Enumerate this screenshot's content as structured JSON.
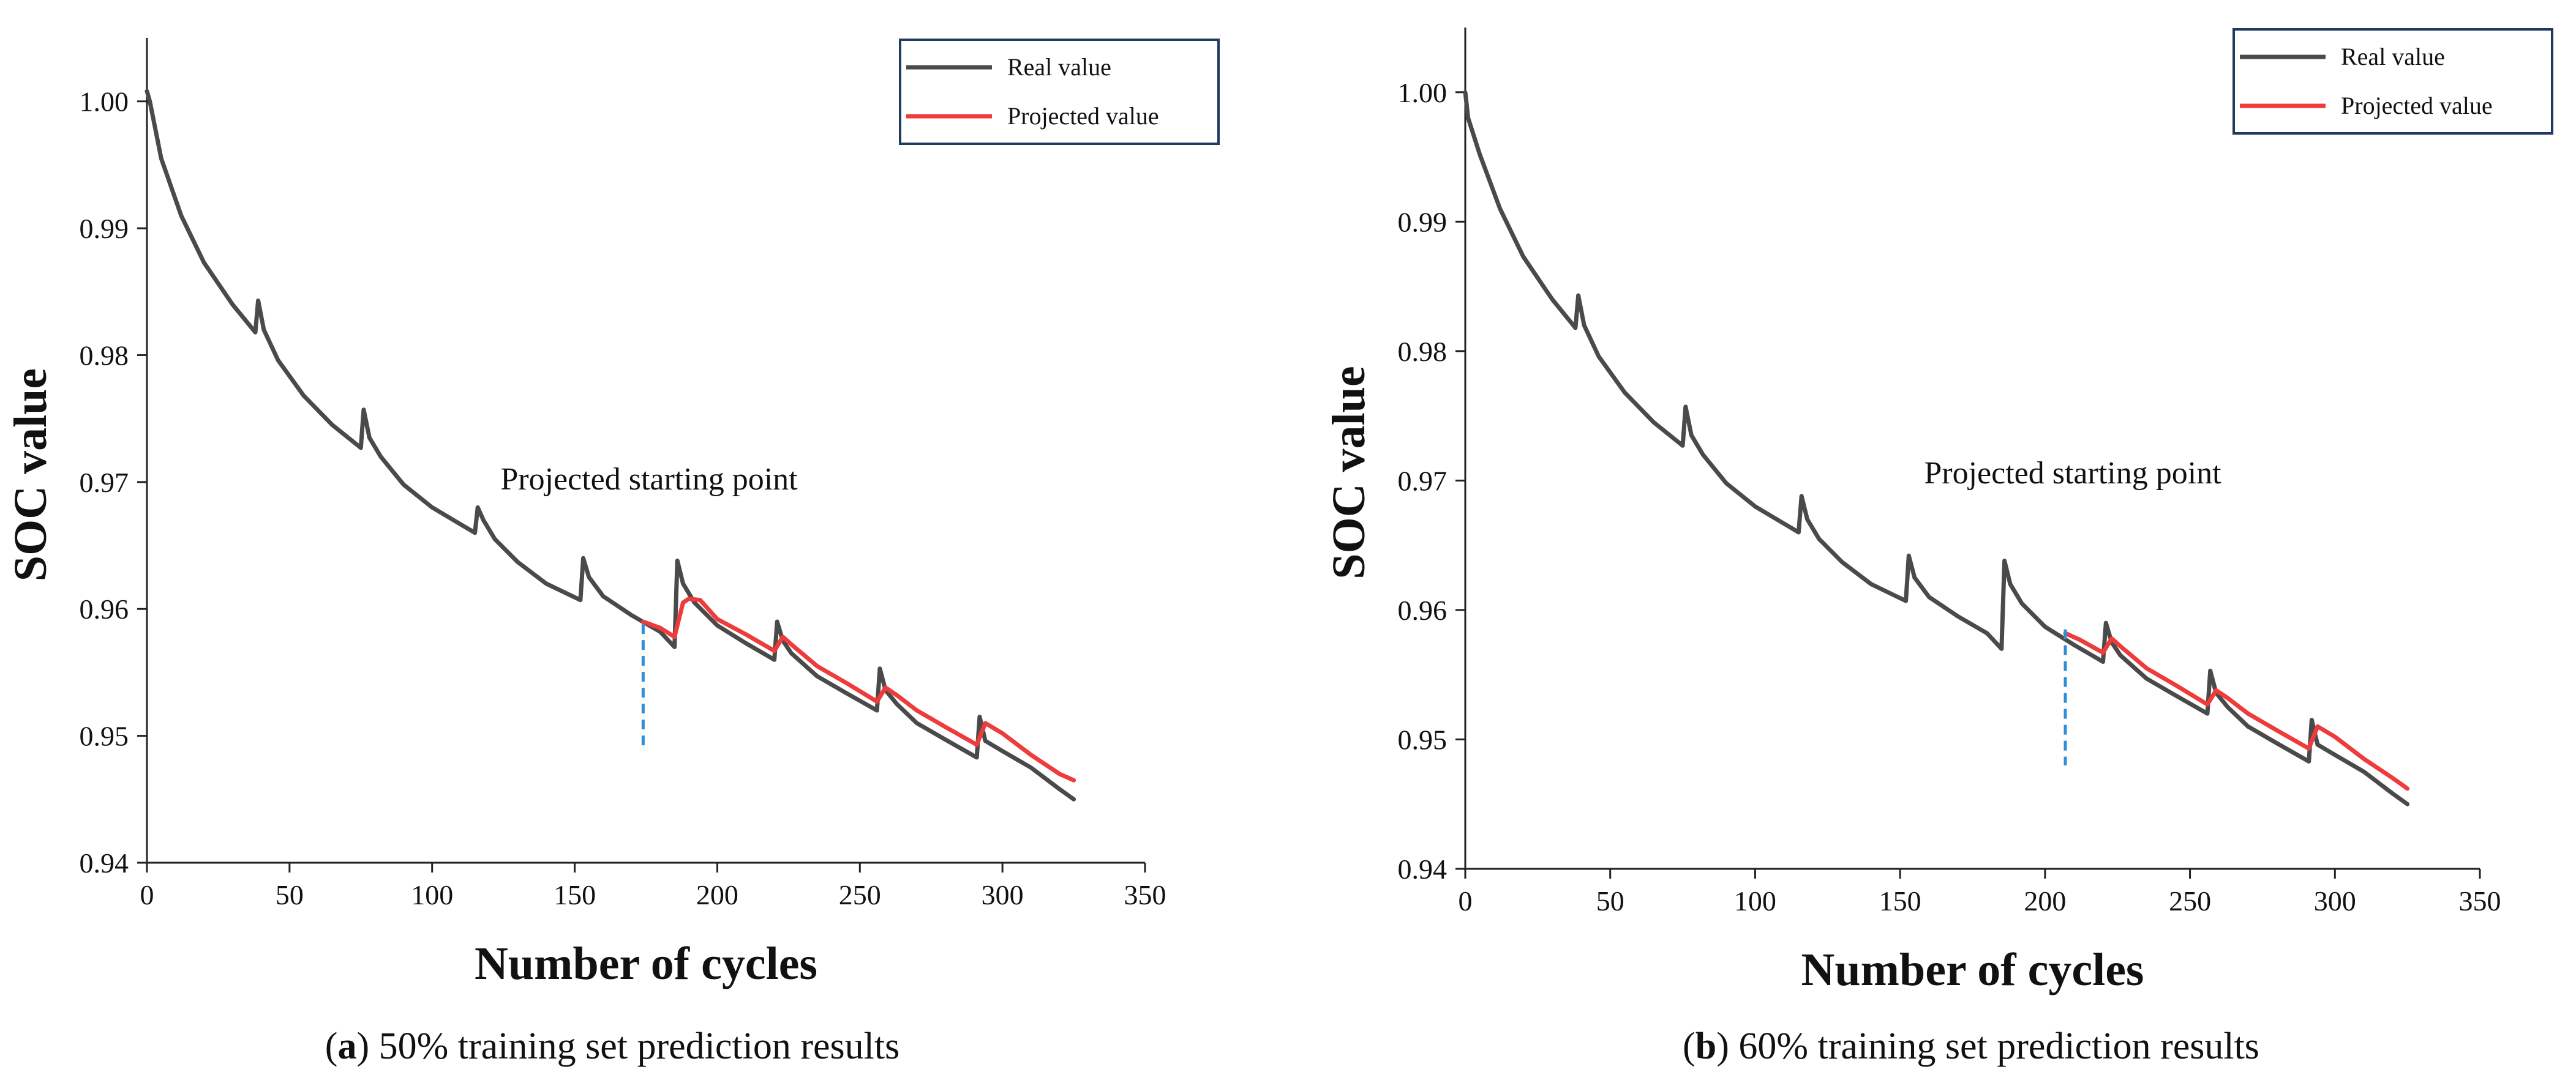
{
  "colors": {
    "real": "#4a4a4a",
    "projected": "#ee3b3b",
    "marker": "#2f8fd6",
    "legend_border": "#1f3a5f"
  },
  "chart_data": [
    {
      "id": "a",
      "type": "line",
      "caption_letter": "a",
      "caption_text": " 50% training set prediction results",
      "xlabel": "Number of cycles",
      "ylabel": "SOC value",
      "xlim": [
        0,
        350
      ],
      "ylim": [
        0.94,
        1.005
      ],
      "xticks": [
        "0",
        "50",
        "100",
        "150",
        "200",
        "250",
        "300",
        "350"
      ],
      "yticks": [
        "0.94",
        "0.95",
        "0.96",
        "0.97",
        "0.98",
        "0.99",
        "1.00"
      ],
      "legend": [
        "Real value",
        "Projected value"
      ],
      "annotation": "Projected starting point",
      "start_cycle": 174,
      "marker_range": [
        0.949,
        0.9588
      ],
      "series": [
        {
          "name": "Real value",
          "x": [
            0,
            1,
            5,
            12,
            20,
            30,
            38,
            39,
            41,
            46,
            55,
            65,
            75,
            76,
            78,
            82,
            90,
            100,
            115,
            116,
            118,
            122,
            130,
            140,
            152,
            153,
            155,
            160,
            170,
            180,
            185,
            186,
            188,
            192,
            200,
            210,
            220,
            221,
            223,
            226,
            235,
            245,
            256,
            257,
            259,
            263,
            270,
            280,
            291,
            292,
            294,
            300,
            310,
            320,
            325
          ],
          "y": [
            1.0008,
            1.0,
            0.9955,
            0.991,
            0.9873,
            0.984,
            0.9818,
            0.9843,
            0.982,
            0.9796,
            0.9768,
            0.9745,
            0.9727,
            0.9757,
            0.9735,
            0.972,
            0.9698,
            0.968,
            0.966,
            0.968,
            0.967,
            0.9655,
            0.9637,
            0.962,
            0.9607,
            0.964,
            0.9625,
            0.961,
            0.9595,
            0.9582,
            0.957,
            0.9638,
            0.962,
            0.9605,
            0.9587,
            0.9573,
            0.956,
            0.959,
            0.9575,
            0.9565,
            0.9547,
            0.9534,
            0.952,
            0.9553,
            0.9536,
            0.9525,
            0.951,
            0.9497,
            0.9483,
            0.9515,
            0.9496,
            0.9488,
            0.9475,
            0.9458,
            0.945
          ]
        },
        {
          "name": "Projected value",
          "x": [
            174,
            180,
            185,
            188,
            190,
            194,
            200,
            210,
            220,
            223,
            226,
            235,
            245,
            256,
            259,
            263,
            270,
            280,
            291,
            294,
            300,
            310,
            320,
            325
          ],
          "y": [
            0.959,
            0.9585,
            0.9578,
            0.9605,
            0.9608,
            0.9607,
            0.9592,
            0.958,
            0.9567,
            0.9578,
            0.9572,
            0.9555,
            0.9542,
            0.9527,
            0.9538,
            0.9532,
            0.952,
            0.9507,
            0.9493,
            0.951,
            0.9502,
            0.9485,
            0.947,
            0.9465
          ]
        }
      ]
    },
    {
      "id": "b",
      "type": "line",
      "caption_letter": "b",
      "caption_text": " 60% training set prediction results",
      "xlabel": "Number of cycles",
      "ylabel": "SOC value",
      "xlim": [
        0,
        350
      ],
      "ylim": [
        0.94,
        1.005
      ],
      "xticks": [
        "0",
        "50",
        "100",
        "150",
        "200",
        "250",
        "300",
        "350"
      ],
      "yticks": [
        "0.94",
        "0.95",
        "0.96",
        "0.97",
        "0.98",
        "0.99",
        "1.00"
      ],
      "legend": [
        "Real value",
        "Projected value"
      ],
      "annotation": "Projected starting point",
      "start_cycle": 207,
      "marker_range": [
        0.948,
        0.9585
      ],
      "series": [
        {
          "name": "Real value",
          "x": [
            0,
            1,
            5,
            12,
            20,
            30,
            38,
            39,
            41,
            46,
            55,
            65,
            75,
            76,
            78,
            82,
            90,
            100,
            115,
            116,
            118,
            122,
            130,
            140,
            152,
            153,
            155,
            160,
            170,
            180,
            185,
            186,
            188,
            192,
            200,
            210,
            220,
            221,
            223,
            226,
            235,
            245,
            256,
            257,
            259,
            263,
            270,
            280,
            291,
            292,
            294,
            300,
            310,
            320,
            325
          ],
          "y": [
            1.0,
            0.998,
            0.9952,
            0.991,
            0.9873,
            0.984,
            0.9818,
            0.9843,
            0.982,
            0.9796,
            0.9768,
            0.9745,
            0.9727,
            0.9757,
            0.9735,
            0.972,
            0.9698,
            0.968,
            0.966,
            0.9688,
            0.967,
            0.9655,
            0.9637,
            0.962,
            0.9607,
            0.9642,
            0.9625,
            0.961,
            0.9595,
            0.9582,
            0.957,
            0.9638,
            0.962,
            0.9605,
            0.9587,
            0.9573,
            0.956,
            0.959,
            0.9575,
            0.9565,
            0.9547,
            0.9534,
            0.952,
            0.9553,
            0.9536,
            0.9525,
            0.951,
            0.9497,
            0.9483,
            0.9515,
            0.9496,
            0.9488,
            0.9475,
            0.9458,
            0.945
          ]
        },
        {
          "name": "Projected value",
          "x": [
            207,
            212,
            220,
            223,
            226,
            235,
            245,
            256,
            259,
            263,
            270,
            280,
            291,
            294,
            300,
            310,
            320,
            325
          ],
          "y": [
            0.9582,
            0.9577,
            0.9567,
            0.9578,
            0.9572,
            0.9555,
            0.9542,
            0.9527,
            0.9538,
            0.9532,
            0.952,
            0.9507,
            0.9493,
            0.951,
            0.9502,
            0.9485,
            0.947,
            0.9462
          ]
        }
      ]
    }
  ]
}
